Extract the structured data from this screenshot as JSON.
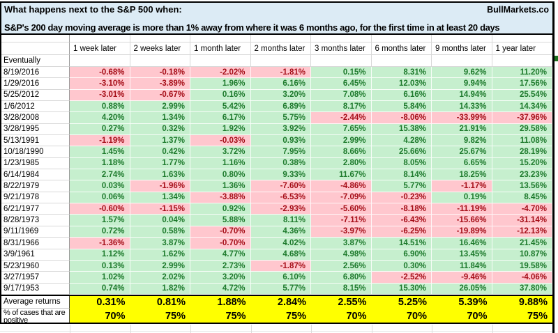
{
  "header": {
    "title": "What happens next to the S&P 500 when:",
    "brand": "BullMarkets.co",
    "subtitle": "S&P's 200 day moving average is more than 1% away from where it was 6 months ago, for the first time in at least 20 days"
  },
  "table": {
    "columns": [
      "1 week later",
      "2 weeks later",
      "1 month later",
      "2 months later",
      "3 months later",
      "6 months later",
      "9 months later",
      "1 year later"
    ],
    "rows": [
      {
        "label": "Eventually",
        "values": [
          "",
          "",
          "",
          "",
          "",
          "",
          "",
          ""
        ]
      },
      {
        "label": "8/19/2016",
        "values": [
          "-0.68%",
          "-0.18%",
          "-2.02%",
          "-1.81%",
          "0.15%",
          "8.31%",
          "9.62%",
          "11.20%"
        ]
      },
      {
        "label": "1/29/2016",
        "values": [
          "-3.10%",
          "-3.89%",
          "1.96%",
          "6.16%",
          "6.45%",
          "12.03%",
          "9.94%",
          "17.56%"
        ]
      },
      {
        "label": "5/25/2012",
        "values": [
          "-3.01%",
          "-0.67%",
          "0.16%",
          "3.20%",
          "7.08%",
          "6.16%",
          "14.94%",
          "25.54%"
        ]
      },
      {
        "label": "1/6/2012",
        "values": [
          "0.88%",
          "2.99%",
          "5.42%",
          "6.89%",
          "8.17%",
          "5.84%",
          "14.33%",
          "14.34%"
        ]
      },
      {
        "label": "3/28/2008",
        "values": [
          "4.20%",
          "1.34%",
          "6.17%",
          "5.75%",
          "-2.44%",
          "-8.06%",
          "-33.99%",
          "-37.96%"
        ]
      },
      {
        "label": "3/28/1995",
        "values": [
          "0.27%",
          "0.32%",
          "1.92%",
          "3.92%",
          "7.65%",
          "15.38%",
          "21.91%",
          "29.58%"
        ]
      },
      {
        "label": "5/13/1991",
        "values": [
          "-1.19%",
          "1.37%",
          "-0.03%",
          "0.93%",
          "2.99%",
          "4.28%",
          "9.82%",
          "11.08%"
        ]
      },
      {
        "label": "10/18/1990",
        "values": [
          "1.45%",
          "0.42%",
          "3.72%",
          "7.95%",
          "8.66%",
          "25.66%",
          "25.67%",
          "28.19%"
        ]
      },
      {
        "label": "1/23/1985",
        "values": [
          "1.18%",
          "1.77%",
          "1.16%",
          "0.38%",
          "2.80%",
          "8.05%",
          "6.65%",
          "15.20%"
        ]
      },
      {
        "label": "6/14/1984",
        "values": [
          "2.74%",
          "1.63%",
          "0.80%",
          "9.33%",
          "11.67%",
          "8.14%",
          "18.25%",
          "23.23%"
        ]
      },
      {
        "label": "8/22/1979",
        "values": [
          "0.03%",
          "-1.96%",
          "1.36%",
          "-7.60%",
          "-4.86%",
          "5.77%",
          "-1.17%",
          "13.56%"
        ]
      },
      {
        "label": "9/21/1978",
        "values": [
          "0.06%",
          "1.34%",
          "-3.88%",
          "-6.53%",
          "-7.09%",
          "-0.23%",
          "0.19%",
          "8.45%"
        ]
      },
      {
        "label": "6/21/1977",
        "values": [
          "-0.60%",
          "-1.15%",
          "0.92%",
          "-2.93%",
          "-5.60%",
          "-8.18%",
          "-11.19%",
          "-4.70%"
        ]
      },
      {
        "label": "8/28/1973",
        "values": [
          "1.57%",
          "0.04%",
          "5.88%",
          "8.11%",
          "-7.11%",
          "-6.43%",
          "-15.66%",
          "-31.14%"
        ]
      },
      {
        "label": "9/11/1969",
        "values": [
          "0.72%",
          "0.58%",
          "-0.70%",
          "4.36%",
          "-3.97%",
          "-6.25%",
          "-19.89%",
          "-12.13%"
        ]
      },
      {
        "label": "8/31/1966",
        "values": [
          "-1.36%",
          "3.87%",
          "-0.70%",
          "4.02%",
          "3.87%",
          "14.51%",
          "16.46%",
          "21.45%"
        ]
      },
      {
        "label": "3/9/1961",
        "values": [
          "1.12%",
          "1.62%",
          "4.77%",
          "4.68%",
          "4.98%",
          "6.90%",
          "13.45%",
          "10.87%"
        ]
      },
      {
        "label": "5/23/1960",
        "values": [
          "0.13%",
          "2.99%",
          "2.73%",
          "-1.87%",
          "2.56%",
          "0.30%",
          "11.84%",
          "19.58%"
        ]
      },
      {
        "label": "3/27/1957",
        "values": [
          "1.02%",
          "2.02%",
          "3.20%",
          "6.10%",
          "6.80%",
          "-2.52%",
          "-9.46%",
          "-4.06%"
        ]
      },
      {
        "label": "9/17/1953",
        "values": [
          "0.74%",
          "1.82%",
          "4.72%",
          "5.77%",
          "8.15%",
          "15.30%",
          "26.05%",
          "37.80%"
        ]
      }
    ],
    "summary": {
      "average_label": "Average returns",
      "average_values": [
        "0.31%",
        "0.81%",
        "1.88%",
        "2.84%",
        "2.55%",
        "5.25%",
        "5.39%",
        "9.88%"
      ],
      "positive_label": "% of cases that are positive",
      "positive_values": [
        "70%",
        "75%",
        "75%",
        "75%",
        "70%",
        "70%",
        "70%",
        "75%"
      ]
    }
  },
  "colors": {
    "title_bg": "#dcebf5",
    "positive_bg": "#c6efce",
    "positive_text": "#1d7a2c",
    "negative_bg": "#ffc7ce",
    "negative_text": "#a50d17",
    "summary_bg": "#ffff00"
  }
}
